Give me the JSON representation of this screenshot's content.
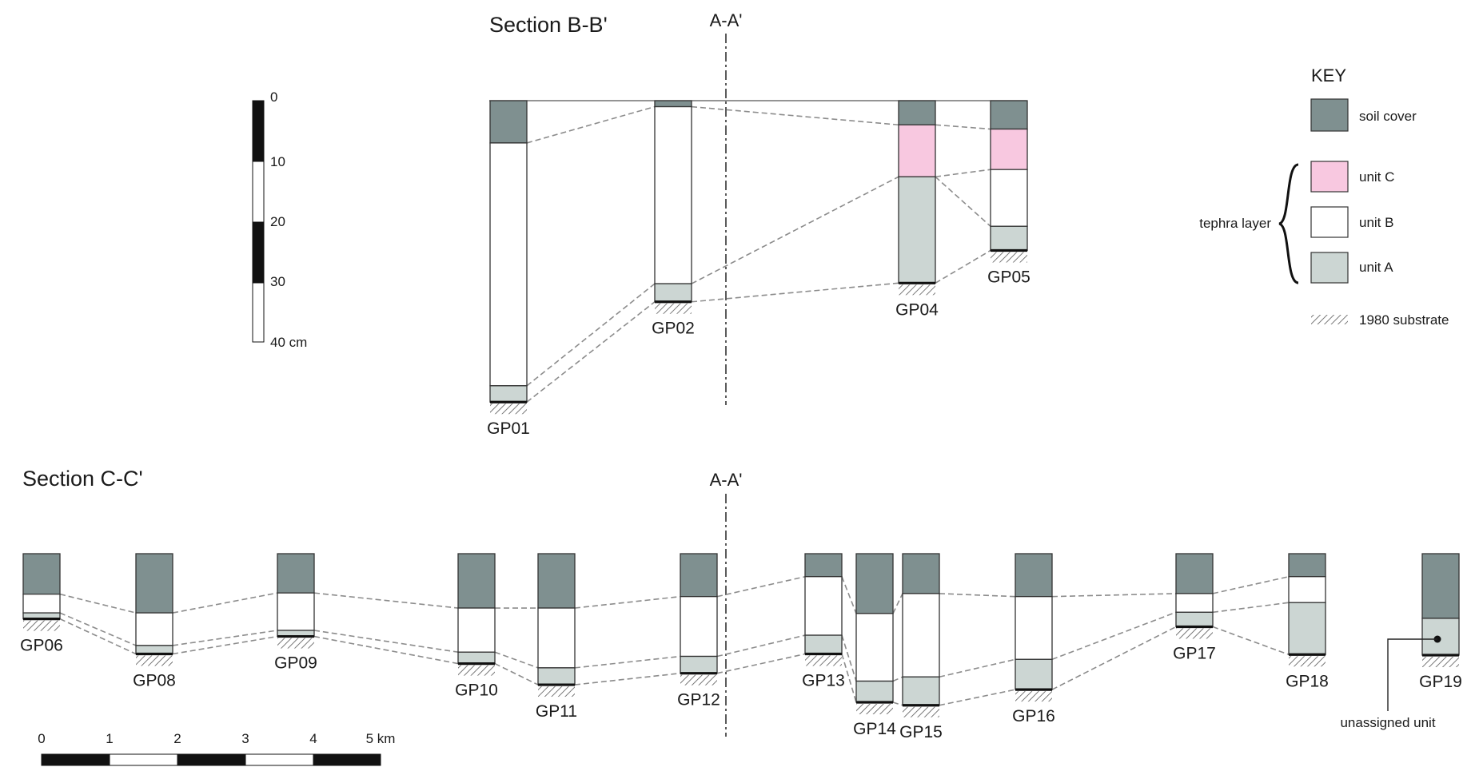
{
  "sections": {
    "bb": {
      "title": "Section B-B'",
      "aa_label": "A-A'"
    },
    "cc": {
      "title": "Section C-C'",
      "aa_label": "A-A'"
    }
  },
  "colors": {
    "soil": "#7f9090",
    "C": "#f8c8e0",
    "B": "#ffffff",
    "A": "#ccd6d3",
    "outline": "#333333",
    "correlation_line": "#8c8c8c"
  },
  "depth_scale": {
    "unit": "cm",
    "ticks": [
      "0",
      "10",
      "20",
      "30",
      "40 cm"
    ],
    "max": 40
  },
  "distance_scale": {
    "ticks": [
      "0",
      "1",
      "2",
      "3",
      "4",
      "5 km"
    ]
  },
  "key": {
    "title": "KEY",
    "soil": "soil cover",
    "unit_c": "unit C",
    "unit_b": "unit B",
    "unit_a": "unit A",
    "brace_label": "tephra layer",
    "substrate": "1980 substrate"
  },
  "annotation": {
    "unassigned": "unassigned unit"
  },
  "profiles_bb": [
    {
      "id": "GP01",
      "layers": [
        [
          "soil",
          7
        ],
        [
          "B",
          40.2
        ],
        [
          "A",
          2.7
        ]
      ]
    },
    {
      "id": "GP02",
      "layers": [
        [
          "soil",
          1
        ],
        [
          "B",
          29.3
        ],
        [
          "A",
          3
        ]
      ]
    },
    {
      "id": "GP04",
      "layers": [
        [
          "soil",
          4
        ],
        [
          "C",
          8.6
        ],
        [
          "A",
          17.6
        ]
      ]
    },
    {
      "id": "GP05",
      "layers": [
        [
          "soil",
          4.7
        ],
        [
          "C",
          6.7
        ],
        [
          "B",
          9.4
        ],
        [
          "A",
          4
        ]
      ]
    }
  ],
  "profiles_cc": [
    {
      "id": "GP06",
      "layers": [
        [
          "soil",
          6.7
        ],
        [
          "B",
          3.1
        ],
        [
          "A",
          1
        ]
      ]
    },
    {
      "id": "GP08",
      "layers": [
        [
          "soil",
          9.8
        ],
        [
          "B",
          5.4
        ],
        [
          "A",
          1.4
        ]
      ]
    },
    {
      "id": "GP09",
      "layers": [
        [
          "soil",
          6.5
        ],
        [
          "B",
          6.2
        ],
        [
          "A",
          1
        ]
      ]
    },
    {
      "id": "GP10",
      "layers": [
        [
          "soil",
          9
        ],
        [
          "B",
          7.3
        ],
        [
          "A",
          1.9
        ]
      ]
    },
    {
      "id": "GP11",
      "layers": [
        [
          "soil",
          9
        ],
        [
          "B",
          9.9
        ],
        [
          "A",
          2.8
        ]
      ]
    },
    {
      "id": "GP12",
      "layers": [
        [
          "soil",
          7.1
        ],
        [
          "B",
          9.9
        ],
        [
          "A",
          2.8
        ]
      ]
    },
    {
      "id": "GP13",
      "layers": [
        [
          "soil",
          3.8
        ],
        [
          "B",
          9.7
        ],
        [
          "A",
          3.1
        ]
      ]
    },
    {
      "id": "GP14",
      "layers": [
        [
          "soil",
          9.9
        ],
        [
          "B",
          11.2
        ],
        [
          "A",
          3.5
        ]
      ]
    },
    {
      "id": "GP15",
      "layers": [
        [
          "soil",
          6.6
        ],
        [
          "B",
          13.8
        ],
        [
          "A",
          4.7
        ]
      ]
    },
    {
      "id": "GP16",
      "layers": [
        [
          "soil",
          7.1
        ],
        [
          "B",
          10.4
        ],
        [
          "A",
          5
        ]
      ]
    },
    {
      "id": "GP17",
      "layers": [
        [
          "soil",
          6.6
        ],
        [
          "B",
          3.1
        ],
        [
          "A",
          2.4
        ]
      ]
    },
    {
      "id": "GP18",
      "layers": [
        [
          "soil",
          3.8
        ],
        [
          "B",
          4.3
        ],
        [
          "A",
          8.6
        ]
      ]
    },
    {
      "id": "GP19",
      "layers": [
        [
          "soil",
          10.7
        ],
        [
          "A",
          6.1
        ]
      ],
      "unassigned": true
    }
  ]
}
